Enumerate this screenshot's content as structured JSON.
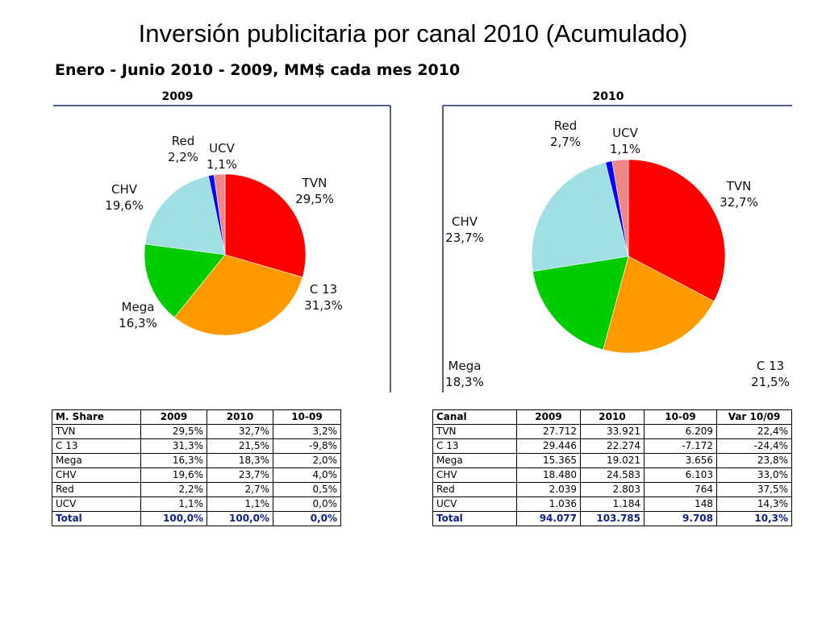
{
  "title": "Inversión publicitaria por canal 2010 (Acumulado)",
  "subtitle": "Enero - Junio 2010 - 2009, MM$ cada mes 2010",
  "colors": {
    "TVN": "#ff0000",
    "C 13": "#ff9900",
    "Mega": "#00cc00",
    "CHV": "#a0dfe3",
    "UCV": "#0000ff",
    "Red": "#ee8888"
  },
  "chart_data": [
    {
      "type": "pie",
      "title": "2009",
      "slices": [
        {
          "label": "TVN",
          "value": 29.5,
          "display": "29,5%"
        },
        {
          "label": "C 13",
          "value": 31.3,
          "display": "31,3%"
        },
        {
          "label": "Mega",
          "value": 16.3,
          "display": "16,3%"
        },
        {
          "label": "CHV",
          "value": 19.6,
          "display": "19,6%"
        },
        {
          "label": "UCV",
          "value": 1.1,
          "display": "1,1%"
        },
        {
          "label": "Red",
          "value": 2.2,
          "display": "2,2%"
        }
      ]
    },
    {
      "type": "pie",
      "title": "2010",
      "slices": [
        {
          "label": "TVN",
          "value": 32.7,
          "display": "32,7%"
        },
        {
          "label": "C 13",
          "value": 21.5,
          "display": "21,5%"
        },
        {
          "label": "Mega",
          "value": 18.3,
          "display": "18,3%"
        },
        {
          "label": "CHV",
          "value": 23.7,
          "display": "23,7%"
        },
        {
          "label": "UCV",
          "value": 1.1,
          "display": "1,1%"
        },
        {
          "label": "Red",
          "value": 2.7,
          "display": "2,7%"
        }
      ]
    }
  ],
  "share_table": {
    "headers": [
      "M. Share",
      "2009",
      "2010",
      "10-09"
    ],
    "rows": [
      [
        "TVN",
        "29,5%",
        "32,7%",
        "3,2%"
      ],
      [
        "C 13",
        "31,3%",
        "21,5%",
        "-9,8%"
      ],
      [
        "Mega",
        "16,3%",
        "18,3%",
        "2,0%"
      ],
      [
        "CHV",
        "19,6%",
        "23,7%",
        "4,0%"
      ],
      [
        "Red",
        "2,2%",
        "2,7%",
        "0,5%"
      ],
      [
        "UCV",
        "1,1%",
        "1,1%",
        "0,0%"
      ]
    ],
    "total": [
      "Total",
      "100,0%",
      "100,0%",
      "0,0%"
    ]
  },
  "amount_table": {
    "headers": [
      "Canal",
      "2009",
      "2010",
      "10-09",
      "Var 10/09"
    ],
    "rows": [
      [
        "TVN",
        "27.712",
        "33.921",
        "6.209",
        "22,4%"
      ],
      [
        "C 13",
        "29.446",
        "22.274",
        "-7.172",
        "-24,4%"
      ],
      [
        "Mega",
        "15.365",
        "19.021",
        "3.656",
        "23,8%"
      ],
      [
        "CHV",
        "18.480",
        "24.583",
        "6.103",
        "33,0%"
      ],
      [
        "Red",
        "2.039",
        "2.803",
        "764",
        "37,5%"
      ],
      [
        "UCV",
        "1.036",
        "1.184",
        "148",
        "14,3%"
      ]
    ],
    "total": [
      "Total",
      "94.077",
      "103.785",
      "9.708",
      "10,3%"
    ]
  }
}
